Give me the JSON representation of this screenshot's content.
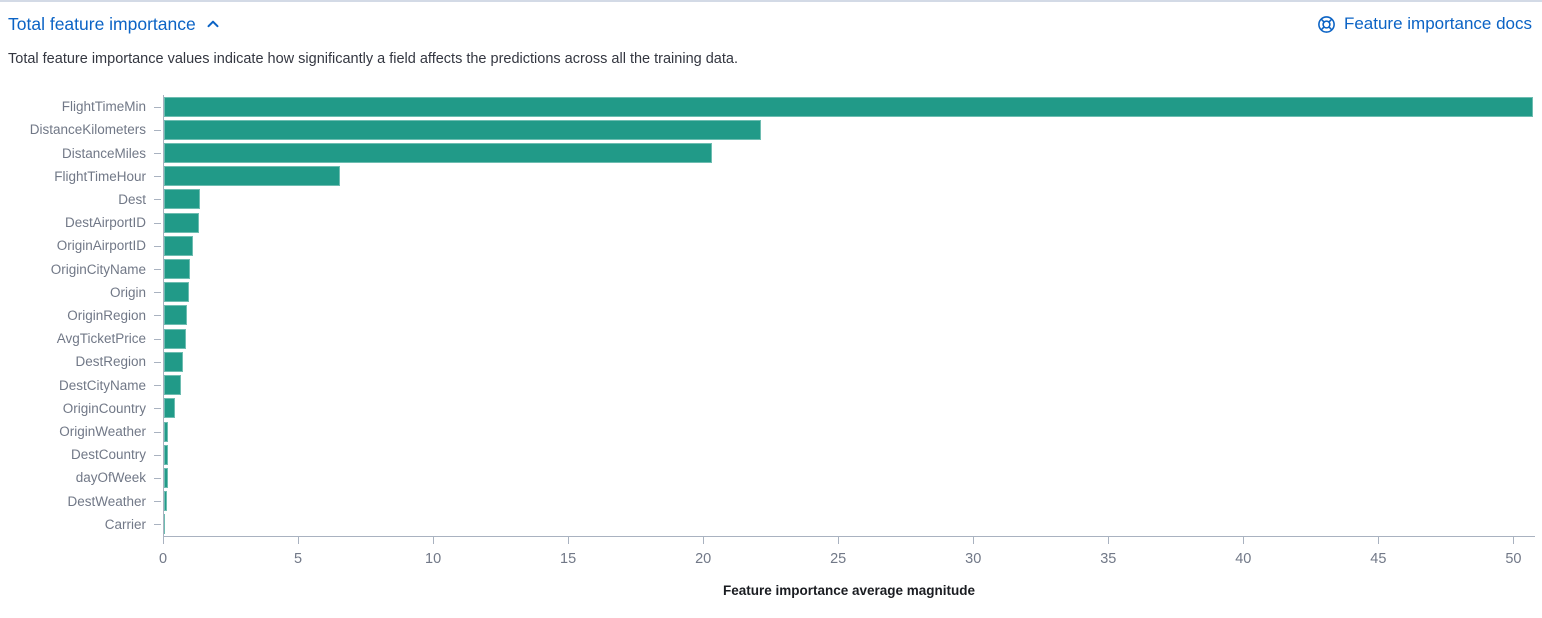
{
  "header": {
    "title": "Total feature importance",
    "docs_link_label": "Feature importance docs"
  },
  "subtitle": "Total feature importance values indicate how significantly a field affects the predictions across all the training data.",
  "colors": {
    "link_blue": "#0B63C5",
    "bar_teal": "#219A88",
    "axis_line": "#A9B2C0",
    "tick_label": "#717887",
    "subtitle_text": "#343741",
    "axis_title_text": "#1A1C21",
    "top_border": "#D3DAE6"
  },
  "chart_data": {
    "type": "bar",
    "orientation": "horizontal",
    "title": "",
    "xlabel": "Feature importance average magnitude",
    "ylabel": "",
    "grid": false,
    "legend": false,
    "xlim": [
      0,
      50.8
    ],
    "xticks": [
      0,
      5,
      10,
      15,
      20,
      25,
      30,
      35,
      40,
      45,
      50
    ],
    "categories": [
      "FlightTimeMin",
      "DistanceKilometers",
      "DistanceMiles",
      "FlightTimeHour",
      "Dest",
      "DestAirportID",
      "OriginAirportID",
      "OriginCityName",
      "Origin",
      "OriginRegion",
      "AvgTicketPrice",
      "DestRegion",
      "DestCityName",
      "OriginCountry",
      "OriginWeather",
      "DestCountry",
      "dayOfWeek",
      "DestWeather",
      "Carrier"
    ],
    "values": [
      50.7,
      22.1,
      20.3,
      6.5,
      1.35,
      1.28,
      1.07,
      0.97,
      0.93,
      0.87,
      0.82,
      0.72,
      0.62,
      0.4,
      0.15,
      0.15,
      0.14,
      0.12,
      0.04
    ]
  }
}
